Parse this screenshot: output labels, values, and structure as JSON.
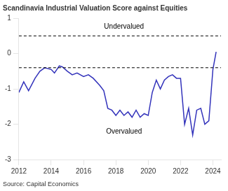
{
  "chart_data": {
    "type": "line",
    "title": "Scandinavia Industrial Valuation Score against Equities",
    "source": "Source: Capital Economics",
    "color": "#3333bb",
    "x": [
      2012.0,
      2012.3,
      2012.6,
      2013.0,
      2013.3,
      2013.6,
      2014.0,
      2014.2,
      2014.5,
      2014.7,
      2015.0,
      2015.3,
      2015.6,
      2016.0,
      2016.3,
      2016.6,
      2017.0,
      2017.25,
      2017.5,
      2017.75,
      2018.0,
      2018.25,
      2018.5,
      2018.75,
      2019.0,
      2019.25,
      2019.5,
      2019.75,
      2020.0,
      2020.25,
      2020.5,
      2020.75,
      2021.0,
      2021.25,
      2021.5,
      2021.75,
      2022.0,
      2022.25,
      2022.5,
      2022.75,
      2023.0,
      2023.25,
      2023.5,
      2023.75,
      2024.0,
      2024.2
    ],
    "values": [
      -1.1,
      -0.8,
      -1.05,
      -0.7,
      -0.5,
      -0.4,
      -0.45,
      -0.55,
      -0.35,
      -0.38,
      -0.5,
      -0.6,
      -0.55,
      -0.65,
      -0.6,
      -0.7,
      -0.9,
      -1.05,
      -1.55,
      -1.6,
      -1.75,
      -1.6,
      -1.75,
      -1.65,
      -1.8,
      -1.6,
      -1.8,
      -1.7,
      -1.75,
      -1.1,
      -0.75,
      -1.0,
      -0.75,
      -0.65,
      -0.6,
      -0.7,
      -0.7,
      -2.0,
      -1.55,
      -2.3,
      -1.6,
      -1.55,
      -2.0,
      -1.9,
      -0.45,
      0.05
    ],
    "hlines": [
      {
        "y": 0.5,
        "color": "#000000",
        "line_style": "dashed"
      },
      {
        "y": -0.4,
        "color": "#000000",
        "line_style": "dashed"
      }
    ],
    "annotations": [
      {
        "text": "Undervalued",
        "x": 2018.5,
        "y": 0.75
      },
      {
        "text": "Overvalued",
        "x": 2018.5,
        "y": -2.2
      }
    ],
    "xlim": [
      2012,
      2024.5
    ],
    "xticks": [
      2012,
      2014,
      2016,
      2018,
      2020,
      2022,
      2024
    ],
    "ylim": [
      -3,
      1
    ],
    "yticks": [
      -3,
      -2,
      -1,
      0,
      1
    ],
    "grid": false
  }
}
